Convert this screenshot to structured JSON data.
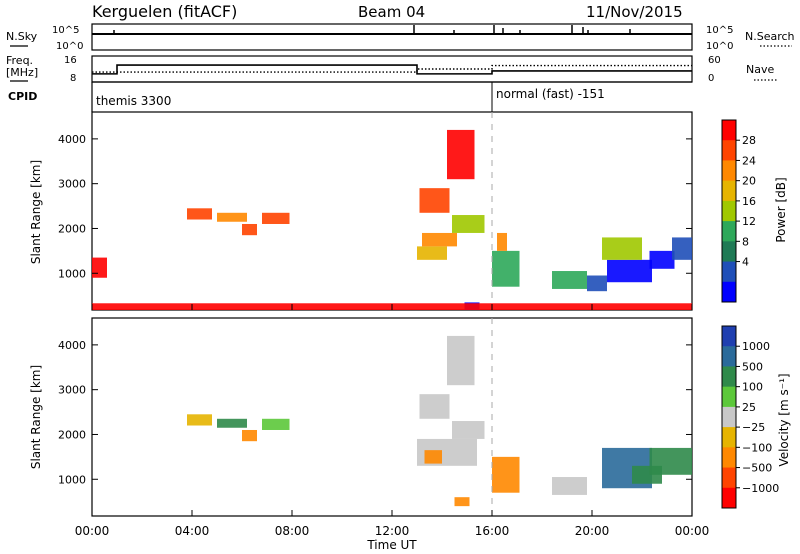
{
  "header": {
    "station": "Kerguelen (fitACF)",
    "beam": "Beam 04",
    "date": "11/Nov/2015"
  },
  "status_panels": {
    "nsky_label": "N.Sky",
    "nsky_ticks": [
      "10^5",
      "10^0"
    ],
    "nsearch_label": "N.Search",
    "nsearch_ticks": [
      "10^5",
      "10^0"
    ],
    "freq_label": [
      "Freq.",
      "[MHz]"
    ],
    "freq_ticks": [
      "16",
      "8"
    ],
    "nave_label": "Nave",
    "nave_ticks": [
      "60",
      "0"
    ],
    "cpid_label": "CPID",
    "cpid_modes": [
      {
        "name": "themis 3300",
        "start_hour": 0
      },
      {
        "name": "normal (fast) -151",
        "start_hour": 16
      }
    ],
    "freq_series": [
      {
        "hour": 0,
        "mhz": 10.5
      },
      {
        "hour": 1,
        "mhz": 13.2
      },
      {
        "hour": 13,
        "mhz": 10.5
      },
      {
        "hour": 16,
        "mhz": 11.4
      },
      {
        "hour": 24,
        "mhz": 11.4
      }
    ],
    "nave_series": [
      {
        "hour": 0,
        "value": 23
      },
      {
        "hour": 13,
        "value": 30
      },
      {
        "hour": 16,
        "value": 38
      },
      {
        "hour": 24,
        "value": 38
      }
    ]
  },
  "chart_data": [
    {
      "type": "heatmap",
      "name": "power",
      "ylabel": "Slant Range [km]",
      "ylim": [
        180,
        4600
      ],
      "xlim_hours": [
        0,
        24
      ],
      "yticks": [
        "1000",
        "2000",
        "3000",
        "4000"
      ],
      "colorbar_label": "Power [dB]",
      "colorbar_ticks": [
        "28",
        "24",
        "20",
        "16",
        "12",
        "8",
        "4"
      ],
      "colorbar_colors": [
        "#ff0000",
        "#ff4400",
        "#ff8800",
        "#e6b400",
        "#a0c800",
        "#2ea85a",
        "#1f7a55",
        "#1f4fb8",
        "#0000ff"
      ],
      "patches": [
        {
          "t0": 0.0,
          "t1": 0.6,
          "r0": 900,
          "r1": 1350,
          "level": 1
        },
        {
          "t0": 3.8,
          "t1": 4.8,
          "r0": 2200,
          "r1": 2450,
          "level": 2
        },
        {
          "t0": 5.0,
          "t1": 6.2,
          "r0": 2150,
          "r1": 2350,
          "level": 3
        },
        {
          "t0": 6.0,
          "t1": 6.6,
          "r0": 1850,
          "r1": 2100,
          "level": 2
        },
        {
          "t0": 6.8,
          "t1": 7.9,
          "r0": 2100,
          "r1": 2350,
          "level": 2
        },
        {
          "t0": 13.0,
          "t1": 14.2,
          "r0": 1300,
          "r1": 1600,
          "level": 4
        },
        {
          "t0": 13.2,
          "t1": 14.6,
          "r0": 1600,
          "r1": 1900,
          "level": 3
        },
        {
          "t0": 14.4,
          "t1": 15.7,
          "r0": 1900,
          "r1": 2300,
          "level": 5
        },
        {
          "t0": 13.1,
          "t1": 14.3,
          "r0": 2350,
          "r1": 2900,
          "level": 2
        },
        {
          "t0": 14.2,
          "t1": 15.3,
          "r0": 3100,
          "r1": 4200,
          "level": 1
        },
        {
          "t0": 16.0,
          "t1": 17.1,
          "r0": 700,
          "r1": 1500,
          "level": 6
        },
        {
          "t0": 16.2,
          "t1": 16.6,
          "r0": 1500,
          "r1": 1900,
          "level": 3
        },
        {
          "t0": 18.4,
          "t1": 19.8,
          "r0": 650,
          "r1": 1050,
          "level": 6
        },
        {
          "t0": 19.8,
          "t1": 20.6,
          "r0": 600,
          "r1": 950,
          "level": 8
        },
        {
          "t0": 20.6,
          "t1": 22.4,
          "r0": 800,
          "r1": 1300,
          "level": 9
        },
        {
          "t0": 20.4,
          "t1": 22.0,
          "r0": 1300,
          "r1": 1800,
          "level": 5
        },
        {
          "t0": 22.3,
          "t1": 23.3,
          "r0": 1100,
          "r1": 1500,
          "level": 9
        },
        {
          "t0": 23.2,
          "t1": 24.0,
          "r0": 1300,
          "r1": 1800,
          "level": 8
        },
        {
          "t0": 14.9,
          "t1": 15.5,
          "r0": 180,
          "r1": 350,
          "level": 9
        },
        {
          "t0": 0.0,
          "t1": 24.0,
          "r0": 180,
          "r1": 330,
          "level": 1
        }
      ]
    },
    {
      "type": "heatmap",
      "name": "velocity",
      "ylabel": "Slant Range [km]",
      "ylim": [
        180,
        4600
      ],
      "xlim_hours": [
        0,
        24
      ],
      "yticks": [
        "1000",
        "2000",
        "3000",
        "4000"
      ],
      "colorbar_label": "Velocity [m s⁻¹]",
      "colorbar_ticks": [
        "1000",
        "500",
        "100",
        "25",
        "−25",
        "−100",
        "−500",
        "−1000"
      ],
      "colorbar_colors": [
        "#1f3fb0",
        "#2a6a9a",
        "#2f8a4a",
        "#5cc83a",
        "#c8c8c8",
        "#e6b400",
        "#ff8800",
        "#ff4400",
        "#ff0000"
      ],
      "patches": [
        {
          "t0": 3.8,
          "t1": 4.8,
          "r0": 2200,
          "r1": 2450,
          "level": 6
        },
        {
          "t0": 5.0,
          "t1": 6.2,
          "r0": 2150,
          "r1": 2350,
          "level": 3
        },
        {
          "t0": 6.0,
          "t1": 6.6,
          "r0": 1850,
          "r1": 2100,
          "level": 7
        },
        {
          "t0": 6.8,
          "t1": 7.9,
          "r0": 2100,
          "r1": 2350,
          "level": 4
        },
        {
          "t0": 13.0,
          "t1": 15.4,
          "r0": 1300,
          "r1": 1900,
          "level": 5
        },
        {
          "t0": 14.4,
          "t1": 15.7,
          "r0": 1900,
          "r1": 2300,
          "level": 5
        },
        {
          "t0": 13.1,
          "t1": 14.3,
          "r0": 2350,
          "r1": 2900,
          "level": 5
        },
        {
          "t0": 14.2,
          "t1": 15.3,
          "r0": 3100,
          "r1": 4200,
          "level": 5
        },
        {
          "t0": 13.3,
          "t1": 14.0,
          "r0": 1350,
          "r1": 1650,
          "level": 7
        },
        {
          "t0": 16.0,
          "t1": 17.1,
          "r0": 700,
          "r1": 1500,
          "level": 7
        },
        {
          "t0": 18.4,
          "t1": 19.8,
          "r0": 650,
          "r1": 1050,
          "level": 5
        },
        {
          "t0": 20.4,
          "t1": 22.4,
          "r0": 800,
          "r1": 1700,
          "level": 2
        },
        {
          "t0": 21.6,
          "t1": 22.8,
          "r0": 900,
          "r1": 1300,
          "level": 3
        },
        {
          "t0": 22.3,
          "t1": 24.0,
          "r0": 1100,
          "r1": 1700,
          "level": 3
        },
        {
          "t0": 14.5,
          "t1": 15.1,
          "r0": 400,
          "r1": 600,
          "level": 7
        }
      ]
    }
  ],
  "xaxis": {
    "label": "Time UT",
    "ticks": [
      "00:00",
      "04:00",
      "08:00",
      "12:00",
      "16:00",
      "20:00",
      "00:00"
    ]
  }
}
